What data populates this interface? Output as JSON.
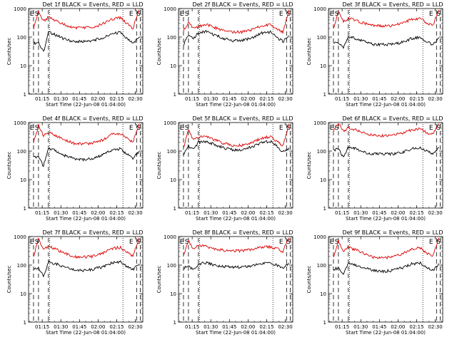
{
  "figure": {
    "x_ticks": [
      "01:15",
      "01:30",
      "01:45",
      "02:00",
      "02:15",
      "02:30"
    ],
    "y_ticks": [
      "1",
      "10",
      "100",
      "1000"
    ],
    "xlabel": "Start Time (22-Jun-08 01:04:00)",
    "ylabel": "Counts/sec",
    "series_colors": {
      "events": "#000000",
      "lld": "#dd0000"
    },
    "marker_labels": [
      "E",
      "S",
      "E",
      "S"
    ]
  },
  "chart_data": [
    {
      "type": "line",
      "title": "Det 1f BLACK = Events, RED = LLD",
      "xlabel": "Start Time (22-Jun-08 01:04:00)",
      "ylabel": "Counts/sec",
      "x_ticks": [
        "01:15",
        "01:30",
        "01:45",
        "02:00",
        "02:15",
        "02:30"
      ],
      "y_ticks": [
        "1",
        "10",
        "100",
        "1000"
      ],
      "ylim": [
        1,
        1000
      ],
      "log_y": true,
      "x": [
        "01:08",
        "01:12",
        "01:16",
        "01:20",
        "01:26",
        "01:33",
        "01:40",
        "01:48",
        "01:55",
        "02:03",
        "02:11",
        "02:18",
        "02:23",
        "02:28",
        "02:33"
      ],
      "series": [
        {
          "name": "Events",
          "color": "#000000",
          "values": [
            60,
            65,
            30,
            150,
            120,
            85,
            70,
            70,
            75,
            90,
            130,
            145,
            90,
            60,
            100
          ]
        },
        {
          "name": "LLD",
          "color": "#dd0000",
          "values": [
            200,
            800,
            350,
            500,
            380,
            270,
            215,
            210,
            220,
            280,
            420,
            480,
            300,
            200,
            900
          ]
        }
      ]
    },
    {
      "type": "line",
      "title": "Det 2f BLACK = Events, RED = LLD",
      "xlabel": "Start Time (22-Jun-08 01:04:00)",
      "ylabel": "Counts/sec",
      "x_ticks": [
        "01:15",
        "01:30",
        "01:45",
        "02:00",
        "02:15",
        "02:30"
      ],
      "y_ticks": [
        "1",
        "10",
        "100",
        "1000"
      ],
      "ylim": [
        1,
        1000
      ],
      "log_y": true,
      "x": [
        "01:08",
        "01:12",
        "01:16",
        "01:20",
        "01:26",
        "01:33",
        "01:40",
        "01:48",
        "01:55",
        "02:03",
        "02:11",
        "02:18",
        "02:23",
        "02:28",
        "02:33"
      ],
      "series": [
        {
          "name": "Events",
          "color": "#000000",
          "values": [
            55,
            120,
            90,
            140,
            160,
            120,
            90,
            75,
            75,
            95,
            140,
            150,
            100,
            70,
            110
          ]
        },
        {
          "name": "LLD",
          "color": "#dd0000",
          "values": [
            160,
            350,
            200,
            230,
            280,
            220,
            170,
            150,
            150,
            180,
            250,
            270,
            190,
            150,
            900
          ]
        }
      ]
    },
    {
      "type": "line",
      "title": "Det 3f BLACK = Events, RED = LLD",
      "xlabel": "Start Time (22-Jun-08 01:04:00)",
      "ylabel": "Counts/sec",
      "x_ticks": [
        "01:15",
        "01:30",
        "01:45",
        "02:00",
        "02:15",
        "02:30"
      ],
      "y_ticks": [
        "1",
        "10",
        "100",
        "1000"
      ],
      "ylim": [
        1,
        1000
      ],
      "log_y": true,
      "x": [
        "01:08",
        "01:12",
        "01:16",
        "01:20",
        "01:26",
        "01:33",
        "01:40",
        "01:48",
        "01:55",
        "02:03",
        "02:11",
        "02:18",
        "02:23",
        "02:28",
        "02:33"
      ],
      "series": [
        {
          "name": "Events",
          "color": "#000000",
          "values": [
            60,
            65,
            40,
            110,
            90,
            70,
            55,
            55,
            55,
            65,
            90,
            100,
            70,
            55,
            95
          ]
        },
        {
          "name": "LLD",
          "color": "#dd0000",
          "values": [
            200,
            800,
            350,
            450,
            380,
            300,
            250,
            250,
            250,
            300,
            420,
            450,
            320,
            250,
            900
          ]
        }
      ]
    },
    {
      "type": "line",
      "title": "Det 4f BLACK = Events, RED = LLD",
      "xlabel": "Start Time (22-Jun-08 01:04:00)",
      "ylabel": "Counts/sec",
      "x_ticks": [
        "01:15",
        "01:30",
        "01:45",
        "02:00",
        "02:15",
        "02:30"
      ],
      "y_ticks": [
        "1",
        "10",
        "100",
        "1000"
      ],
      "ylim": [
        1,
        1000
      ],
      "log_y": true,
      "x": [
        "01:08",
        "01:12",
        "01:16",
        "01:20",
        "01:26",
        "01:33",
        "01:40",
        "01:48",
        "01:55",
        "02:03",
        "02:11",
        "02:18",
        "02:23",
        "02:28",
        "02:33"
      ],
      "series": [
        {
          "name": "Events",
          "color": "#000000",
          "values": [
            60,
            65,
            30,
            130,
            100,
            70,
            55,
            50,
            55,
            70,
            110,
            120,
            80,
            55,
            100
          ]
        },
        {
          "name": "LLD",
          "color": "#dd0000",
          "values": [
            200,
            800,
            350,
            450,
            350,
            250,
            190,
            180,
            190,
            240,
            380,
            420,
            280,
            200,
            900
          ]
        }
      ]
    },
    {
      "type": "line",
      "title": "Det 5f BLACK = Events, RED = LLD",
      "xlabel": "Start Time (22-Jun-08 01:04:00)",
      "ylabel": "Counts/sec",
      "x_ticks": [
        "01:15",
        "01:30",
        "01:45",
        "02:00",
        "02:15",
        "02:30"
      ],
      "y_ticks": [
        "1",
        "10",
        "100",
        "1000"
      ],
      "ylim": [
        1,
        1000
      ],
      "log_y": true,
      "x": [
        "01:08",
        "01:12",
        "01:16",
        "01:20",
        "01:26",
        "01:33",
        "01:40",
        "01:48",
        "01:55",
        "02:03",
        "02:11",
        "02:18",
        "02:23",
        "02:28",
        "02:33"
      ],
      "series": [
        {
          "name": "Events",
          "color": "#000000",
          "values": [
            70,
            160,
            110,
            200,
            220,
            170,
            130,
            110,
            110,
            140,
            200,
            220,
            150,
            90,
            130
          ]
        },
        {
          "name": "LLD",
          "color": "#dd0000",
          "values": [
            120,
            550,
            250,
            300,
            330,
            250,
            190,
            160,
            160,
            200,
            290,
            320,
            220,
            150,
            900
          ]
        }
      ]
    },
    {
      "type": "line",
      "title": "Det 6f BLACK = Events, RED = LLD",
      "xlabel": "Start Time (22-Jun-08 01:04:00)",
      "ylabel": "Counts/sec",
      "x_ticks": [
        "01:15",
        "01:30",
        "01:45",
        "02:00",
        "02:15",
        "02:30"
      ],
      "y_ticks": [
        "1",
        "10",
        "100",
        "1000"
      ],
      "ylim": [
        1,
        1000
      ],
      "log_y": true,
      "x": [
        "01:08",
        "01:12",
        "01:16",
        "01:20",
        "01:26",
        "01:33",
        "01:40",
        "01:48",
        "01:55",
        "02:03",
        "02:11",
        "02:18",
        "02:23",
        "02:28",
        "02:33"
      ],
      "series": [
        {
          "name": "Events",
          "color": "#000000",
          "values": [
            110,
            120,
            60,
            140,
            120,
            90,
            80,
            80,
            80,
            90,
            120,
            130,
            100,
            80,
            130
          ]
        },
        {
          "name": "LLD",
          "color": "#dd0000",
          "values": [
            500,
            950,
            500,
            650,
            550,
            420,
            360,
            350,
            360,
            420,
            560,
            600,
            450,
            380,
            900
          ]
        }
      ]
    },
    {
      "type": "line",
      "title": "Det 7f BLACK = Events, RED = LLD",
      "xlabel": "Start Time (22-Jun-08 01:04:00)",
      "ylabel": "Counts/sec",
      "x_ticks": [
        "01:15",
        "01:30",
        "01:45",
        "02:00",
        "02:15",
        "02:30"
      ],
      "y_ticks": [
        "1",
        "10",
        "100",
        "1000"
      ],
      "ylim": [
        1,
        1000
      ],
      "log_y": true,
      "x": [
        "01:08",
        "01:12",
        "01:16",
        "01:20",
        "01:26",
        "01:33",
        "01:40",
        "01:48",
        "01:55",
        "02:03",
        "02:11",
        "02:18",
        "02:23",
        "02:28",
        "02:33"
      ],
      "series": [
        {
          "name": "Events",
          "color": "#000000",
          "values": [
            70,
            80,
            40,
            130,
            110,
            85,
            70,
            65,
            70,
            85,
            120,
            130,
            90,
            70,
            110
          ]
        },
        {
          "name": "LLD",
          "color": "#dd0000",
          "values": [
            200,
            850,
            350,
            450,
            360,
            260,
            200,
            190,
            200,
            250,
            380,
            420,
            280,
            200,
            900
          ]
        }
      ]
    },
    {
      "type": "line",
      "title": "Det 8f BLACK = Events, RED = LLD",
      "xlabel": "Start Time (22-Jun-08 01:04:00)",
      "ylabel": "Counts/sec",
      "x_ticks": [
        "01:15",
        "01:30",
        "01:45",
        "02:00",
        "02:15",
        "02:30"
      ],
      "y_ticks": [
        "1",
        "10",
        "100",
        "1000"
      ],
      "ylim": [
        1,
        1000
      ],
      "log_y": true,
      "x": [
        "01:08",
        "01:12",
        "01:16",
        "01:20",
        "01:26",
        "01:33",
        "01:40",
        "01:48",
        "01:55",
        "02:03",
        "02:11",
        "02:18",
        "02:23",
        "02:28",
        "02:33"
      ],
      "series": [
        {
          "name": "Events",
          "color": "#000000",
          "values": [
            80,
            90,
            70,
            110,
            120,
            100,
            90,
            85,
            85,
            95,
            110,
            120,
            100,
            80,
            110
          ]
        },
        {
          "name": "LLD",
          "color": "#dd0000",
          "values": [
            220,
            700,
            350,
            500,
            450,
            380,
            330,
            320,
            320,
            350,
            420,
            440,
            380,
            300,
            900
          ]
        }
      ]
    },
    {
      "type": "line",
      "title": "Det 9f BLACK = Events, RED = LLD",
      "xlabel": "Start Time (22-Jun-08 01:04:00)",
      "ylabel": "Counts/sec",
      "x_ticks": [
        "01:15",
        "01:30",
        "01:45",
        "02:00",
        "02:15",
        "02:30"
      ],
      "y_ticks": [
        "1",
        "10",
        "100",
        "1000"
      ],
      "ylim": [
        1,
        1000
      ],
      "log_y": true,
      "x": [
        "01:08",
        "01:12",
        "01:16",
        "01:20",
        "01:26",
        "01:33",
        "01:40",
        "01:48",
        "01:55",
        "02:03",
        "02:11",
        "02:18",
        "02:23",
        "02:28",
        "02:33"
      ],
      "series": [
        {
          "name": "Events",
          "color": "#000000",
          "values": [
            70,
            80,
            45,
            120,
            100,
            80,
            65,
            60,
            65,
            80,
            110,
            120,
            85,
            65,
            110
          ]
        },
        {
          "name": "LLD",
          "color": "#dd0000",
          "values": [
            180,
            700,
            320,
            420,
            340,
            250,
            190,
            180,
            190,
            240,
            360,
            400,
            270,
            190,
            900
          ]
        }
      ]
    }
  ]
}
